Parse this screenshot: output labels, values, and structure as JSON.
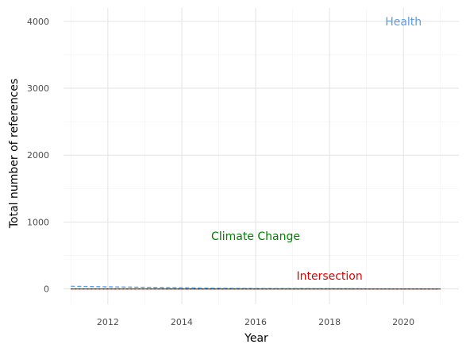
{
  "chart_data": {
    "type": "line",
    "xlabel": "Year",
    "ylabel": "Total number of references",
    "xlim": [
      2010.8,
      2021.5
    ],
    "ylim": [
      -230,
      4200
    ],
    "x_ticks": [
      2012,
      2014,
      2016,
      2018,
      2020
    ],
    "y_ticks": [
      0,
      1000,
      2000,
      3000,
      4000
    ],
    "grid": true,
    "legend": "none",
    "series": [
      {
        "name": "Health",
        "color": "#5b9bea",
        "dash": "dashed",
        "x": [
          2011,
          2012,
          2013,
          2014,
          2015,
          2016,
          2017,
          2018,
          2019,
          2020,
          2021
        ],
        "y": [
          40,
          32,
          25,
          18,
          10,
          6,
          4,
          3,
          2,
          1,
          1
        ]
      },
      {
        "name": "Climate Change",
        "color": "#2e7d32",
        "dash": "solid",
        "x": [
          2011,
          2012,
          2013,
          2014,
          2015,
          2016,
          2017,
          2018,
          2019,
          2020,
          2021
        ],
        "y": [
          2,
          2,
          2,
          1,
          1,
          1,
          1,
          1,
          0,
          0,
          0
        ]
      },
      {
        "name": "Intersection",
        "color": "#d32f2f",
        "dash": "solid",
        "x": [
          2011,
          2012,
          2013,
          2014,
          2015,
          2016,
          2017,
          2018,
          2019,
          2020,
          2021
        ],
        "y": [
          0,
          0,
          0,
          0,
          0,
          0,
          0,
          0,
          0,
          0,
          0
        ]
      },
      {
        "name": "",
        "color": "#333333",
        "dash": "dotted",
        "x": [
          2011,
          2012,
          2013,
          2014,
          2015,
          2016,
          2017,
          2018,
          2019,
          2020,
          2021
        ],
        "y": [
          0,
          0,
          0,
          0,
          0,
          0,
          0,
          0,
          0,
          0,
          0
        ]
      }
    ],
    "annotations": [
      {
        "text": "Health",
        "x": 2020.0,
        "y": 4000,
        "color": "#5b9bea"
      },
      {
        "text": "Climate Change",
        "x": 2016.0,
        "y": 790,
        "color": "#008000"
      },
      {
        "text": "Intersection",
        "x": 2018.0,
        "y": 200,
        "color": "#e00000"
      }
    ]
  }
}
